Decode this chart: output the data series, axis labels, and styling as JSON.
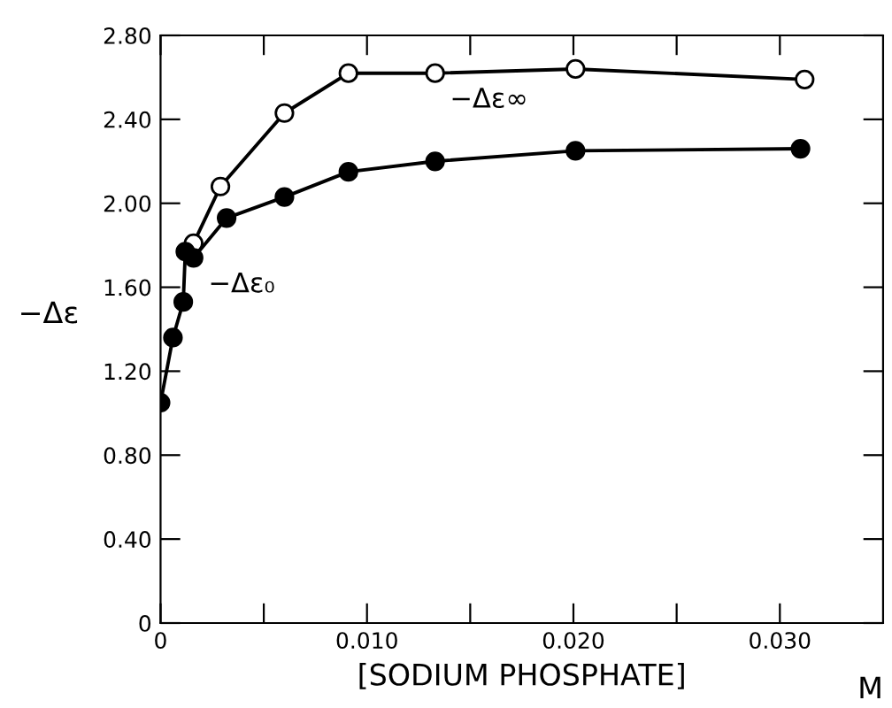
{
  "chart_data": {
    "type": "line",
    "xlabel": "[SODIUM PHOSPHATE]",
    "ylabel": "−Δε",
    "annotations": [
      "M"
    ],
    "series": [
      {
        "name": "−Δε∞",
        "color": "#000000",
        "x": [
          0.0016,
          0.0029,
          0.006,
          0.0091,
          0.0133,
          0.0201,
          0.0312
        ],
        "values": [
          1.81,
          2.08,
          2.43,
          2.62,
          2.62,
          2.64,
          2.59
        ]
      },
      {
        "name": "−Δε₀",
        "color": "#000000",
        "x": [
          0,
          0.0006,
          0.0011,
          0.0012,
          0.0016,
          0.0032,
          0.006,
          0.0091,
          0.0133,
          0.0201,
          0.031
        ],
        "values": [
          1.05,
          1.36,
          1.53,
          1.77,
          1.74,
          1.93,
          2.03,
          2.15,
          2.2,
          2.25,
          2.26
        ]
      }
    ],
    "marker": "circle",
    "line_style": "solid",
    "grid": false,
    "legend": false,
    "xlim": [
      0,
      0.035
    ],
    "xticks": [
      0,
      {
        "value": 0.005,
        "label": null
      },
      {
        "value": 0.01,
        "label": "0.010"
      },
      {
        "value": 0.015,
        "label": null
      },
      {
        "value": 0.02,
        "label": "0.020"
      },
      {
        "value": 0.025,
        "label": null
      },
      {
        "value": 0.03,
        "label": "0.030"
      }
    ],
    "ylim": [
      0,
      2.8
    ],
    "yticks": [
      0,
      {
        "value": 0.4,
        "label": "0.40"
      },
      {
        "value": 0.8,
        "label": "0.80"
      },
      {
        "value": 1.2,
        "label": "1.20"
      },
      {
        "value": 1.6,
        "label": "1.60"
      },
      {
        "value": 2.0,
        "label": "2.00"
      },
      {
        "value": 2.4,
        "label": "2.40"
      },
      {
        "value": 2.8,
        "label": "2.80"
      }
    ]
  }
}
